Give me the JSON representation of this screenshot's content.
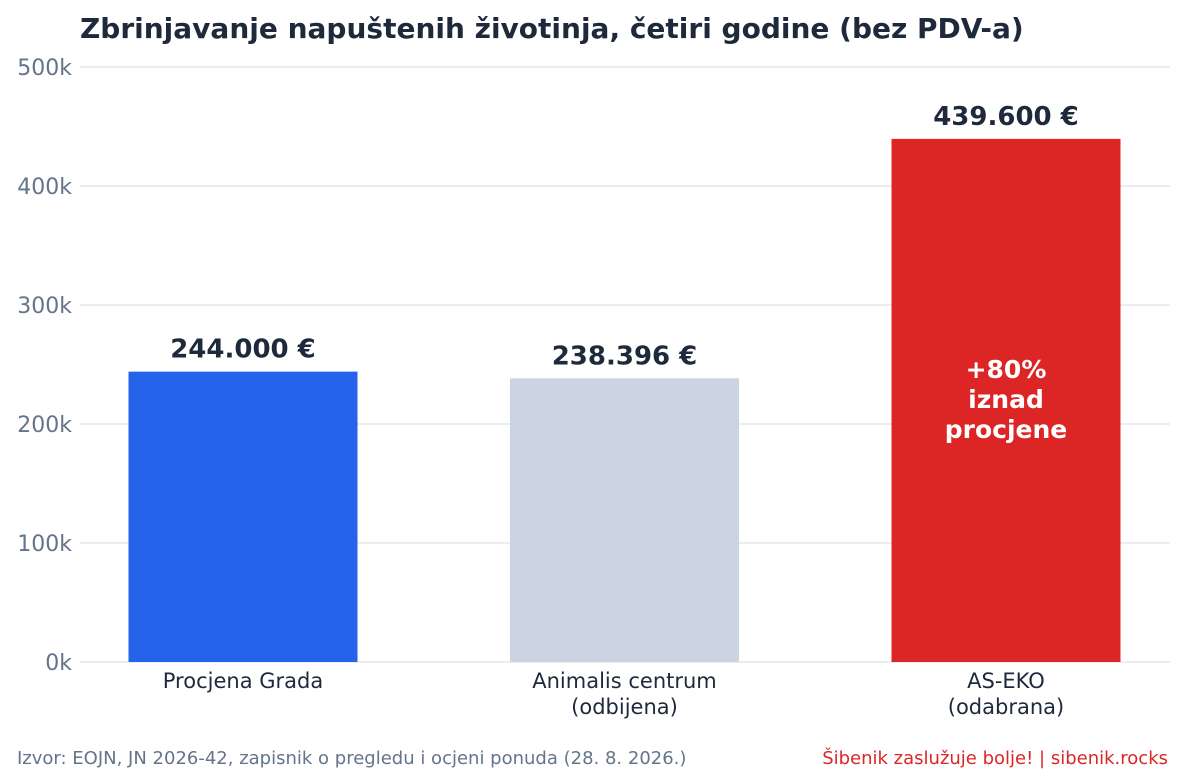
{
  "chart_data": {
    "type": "bar",
    "title": "Zbrinjavanje napuštenih životinja, četiri godine (bez PDV-a)",
    "categories": [
      [
        "Procjena Grada"
      ],
      [
        "Animalis centrum",
        "(odbijena)"
      ],
      [
        "AS-EKO",
        "(odabrana)"
      ]
    ],
    "values": [
      244000,
      238396,
      439600
    ],
    "value_labels": [
      "244.000 €",
      "238.396 €",
      "439.600 €"
    ],
    "colors": [
      "#2563eb",
      "#cbd5e1",
      "#dc2626"
    ],
    "ylim": [
      0,
      500000
    ],
    "yticks": [
      0,
      100000,
      200000,
      300000,
      400000,
      500000
    ],
    "ytick_labels": [
      "0k",
      "100k",
      "200k",
      "300k",
      "400k",
      "500k"
    ],
    "grid": true,
    "annotation": {
      "bar_index": 2,
      "lines": [
        "+80%",
        "iznad",
        "procjene"
      ]
    }
  },
  "footer": {
    "source": "Izvor: EOJN, JN 2026-42, zapisnik o pregledu i ocjeni ponuda (28. 8. 2026.)",
    "brand": "Šibenik zaslužuje bolje!  |  sibenik.rocks"
  }
}
